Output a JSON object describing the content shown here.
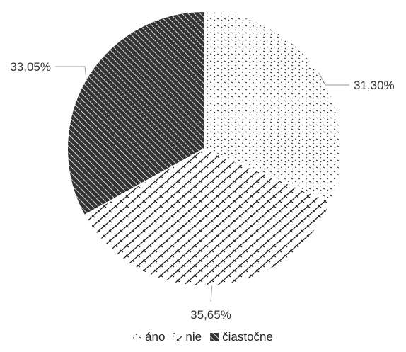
{
  "chart_data": {
    "type": "pie",
    "start_angle": "12 o'clock, clockwise",
    "legend_position": "bottom",
    "slices": [
      {
        "name": "áno",
        "value": 31.3,
        "label": "31,30%",
        "pattern": "dots"
      },
      {
        "name": "nie",
        "value": 35.65,
        "label": "35,65%",
        "pattern": "brick"
      },
      {
        "name": "čiastočne",
        "value": 33.05,
        "label": "33,05%",
        "pattern": "dark-diagonal"
      }
    ]
  }
}
